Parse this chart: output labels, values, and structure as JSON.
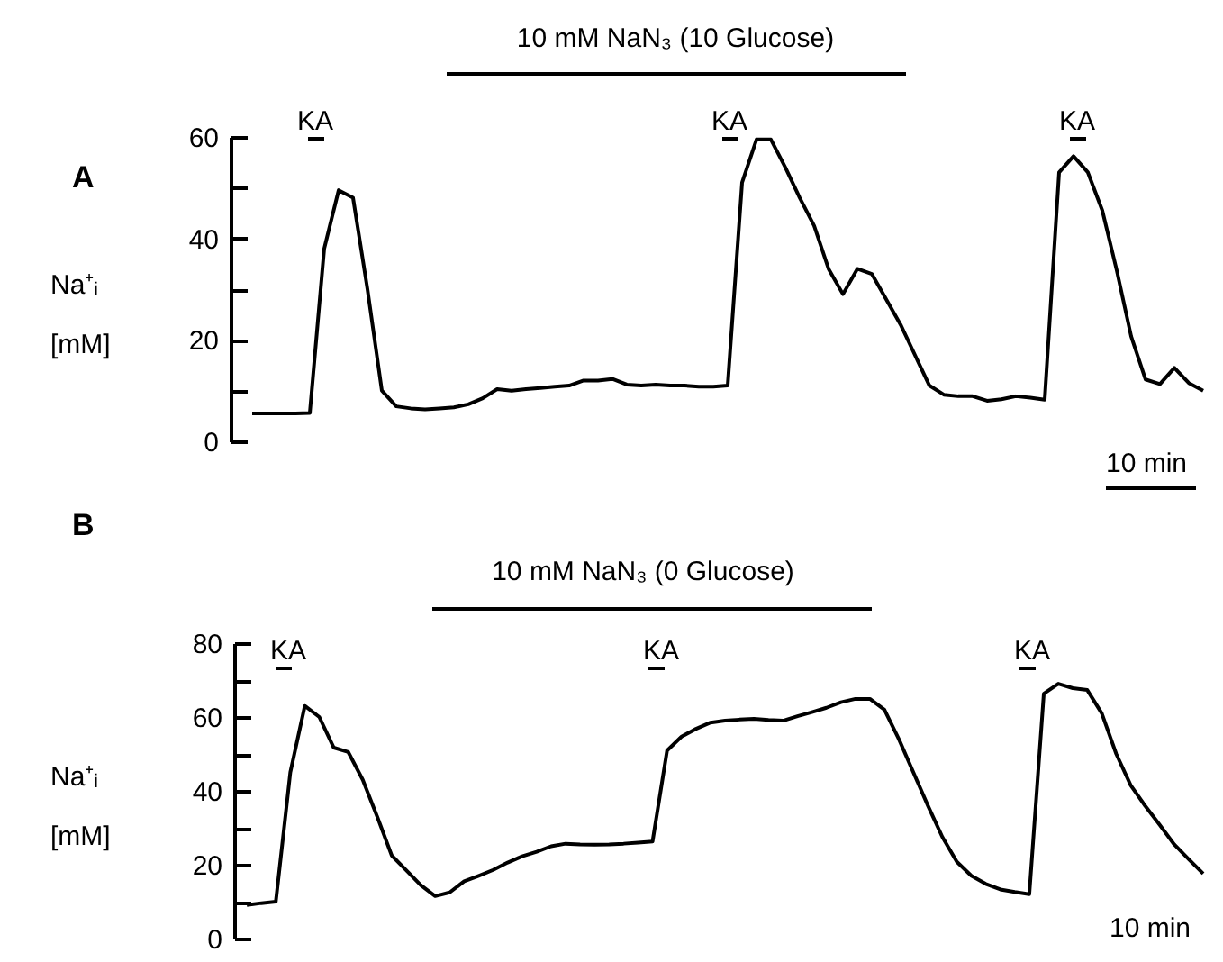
{
  "chart_data": [
    {
      "type": "line",
      "title": "10 mM NaN₃ (10 Glucose)",
      "ylabel": "Na⁺ᵢ [mM]",
      "annotations": [
        "A",
        "KA",
        "KA",
        "KA",
        "10 min"
      ],
      "categories": [
        null,
        null,
        null,
        null,
        null,
        null,
        null,
        null,
        null,
        null,
        null,
        null,
        null,
        null,
        null,
        null,
        null,
        null,
        null,
        null,
        null,
        null,
        null,
        null,
        null,
        null,
        null,
        null,
        null,
        null,
        null,
        null,
        null,
        null,
        null,
        null,
        null,
        null,
        null,
        null,
        null,
        null,
        null,
        null,
        null,
        null,
        null,
        null,
        null,
        null,
        null,
        null,
        null,
        null,
        null,
        null,
        null,
        null,
        null,
        null,
        null,
        null,
        null,
        null,
        null,
        null,
        null
      ],
      "series": [
        {
          "color": "#000000",
          "values": [
            5.5,
            5.5,
            5.5,
            5.5,
            5.6,
            38,
            49.5,
            48,
            30,
            10,
            6.9,
            6.5,
            6.3,
            6.5,
            6.7,
            7.3,
            8.5,
            10.3,
            10,
            10.3,
            10.5,
            10.8,
            11,
            12,
            12,
            12.3,
            11.2,
            11,
            11.2,
            11,
            11,
            10.8,
            10.8,
            11,
            51,
            59.5,
            59.5,
            54,
            48,
            42.5,
            34,
            29,
            34,
            33,
            28,
            23,
            17,
            11,
            9.2,
            8.9,
            8.9,
            8,
            8.3,
            8.9,
            8.6,
            8.2,
            53,
            56.2,
            53,
            45.5,
            33.7,
            20.7,
            12.2,
            11.3,
            14.5,
            11.5,
            10
          ]
        }
      ],
      "ylim": [
        0,
        60
      ],
      "yticks": [
        0,
        {
          "value": 10,
          "label": null
        },
        20,
        {
          "value": 30,
          "label": null
        },
        40,
        {
          "value": 50,
          "label": null
        },
        60
      ],
      "tick_labels": "y"
    },
    {
      "type": "line",
      "title": "10 mM NaN₃ (0 Glucose)",
      "ylabel": "Na⁺ᵢ [mM]",
      "annotations": [
        "B",
        "KA",
        "KA",
        "KA",
        "10 min"
      ],
      "categories": [
        null,
        null,
        null,
        null,
        null,
        null,
        null,
        null,
        null,
        null,
        null,
        null,
        null,
        null,
        null,
        null,
        null,
        null,
        null,
        null,
        null,
        null,
        null,
        null,
        null,
        null,
        null,
        null,
        null,
        null,
        null,
        null,
        null,
        null,
        null,
        null,
        null,
        null,
        null,
        null,
        null,
        null,
        null,
        null,
        null,
        null,
        null,
        null,
        null,
        null,
        null,
        null,
        null,
        null,
        null,
        null,
        null,
        null,
        null,
        null,
        null,
        null,
        null,
        null,
        null,
        null,
        null
      ],
      "series": [
        {
          "color": "#000000",
          "values": [
            9.1,
            9.6,
            10,
            45,
            63,
            60,
            51.7,
            50.5,
            43,
            33,
            22.5,
            18.5,
            14.5,
            11.5,
            12.5,
            15.5,
            17,
            18.6,
            20.6,
            22.3,
            23.5,
            25,
            25.7,
            25.5,
            25.4,
            25.5,
            25.7,
            26,
            26.3,
            50.9,
            54.7,
            56.8,
            58.5,
            59,
            59.3,
            59.5,
            59.2,
            59,
            60.2,
            61.3,
            62.5,
            64,
            64.9,
            64.9,
            62,
            54,
            45,
            36,
            27.5,
            20.8,
            17,
            14.8,
            13.3,
            12.6,
            12,
            66.3,
            69,
            67.8,
            67.3,
            61,
            50,
            41.5,
            35.9,
            30.8,
            25.5,
            21.5,
            17.6
          ]
        }
      ],
      "ylim": [
        0,
        80
      ],
      "yticks": [
        0,
        {
          "value": 10,
          "label": null
        },
        20,
        {
          "value": 30,
          "label": null
        },
        40,
        {
          "value": 50,
          "label": null
        },
        60,
        {
          "value": 70,
          "label": null
        },
        80
      ],
      "tick_labels": "y"
    }
  ]
}
